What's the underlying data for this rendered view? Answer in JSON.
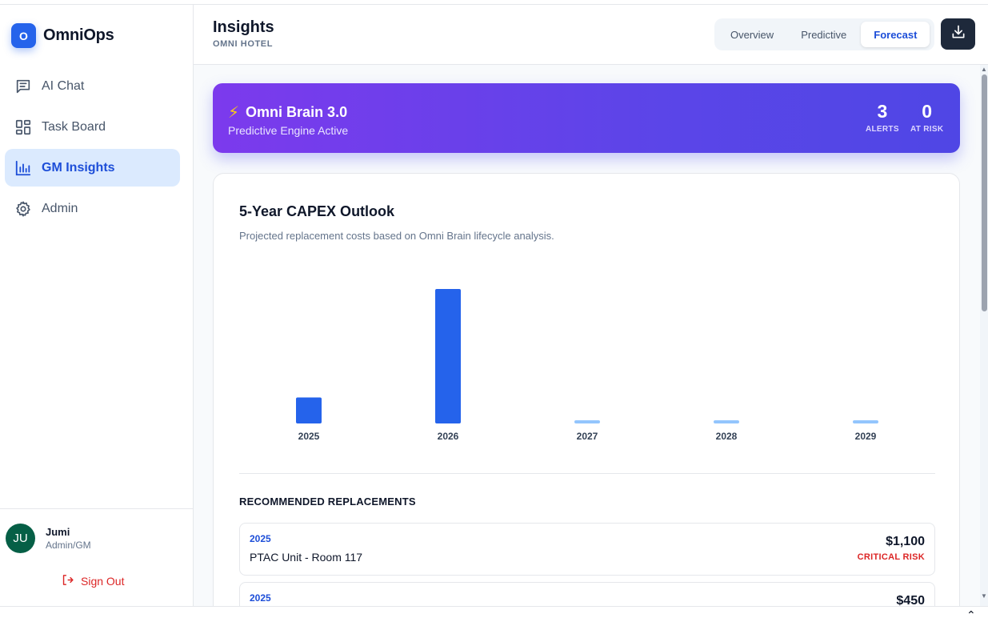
{
  "app": {
    "logo_letter": "O",
    "name": "OmniOps"
  },
  "sidebar": {
    "items": [
      {
        "label": "AI Chat",
        "icon": "chat-icon"
      },
      {
        "label": "Task Board",
        "icon": "grid-icon"
      },
      {
        "label": "GM Insights",
        "icon": "bar-chart-icon",
        "active": true
      },
      {
        "label": "Admin",
        "icon": "gear-icon"
      }
    ],
    "user": {
      "initials": "JU",
      "name": "Jumi",
      "role": "Admin/GM"
    },
    "signout_label": "Sign Out"
  },
  "header": {
    "title": "Insights",
    "subtitle": "OMNI HOTEL",
    "tabs": [
      "Overview",
      "Predictive",
      "Forecast"
    ],
    "active_tab": "Forecast"
  },
  "banner": {
    "title": "Omni Brain 3.0",
    "subtitle": "Predictive Engine Active",
    "stats": [
      {
        "value": "3",
        "label": "ALERTS"
      },
      {
        "value": "0",
        "label": "AT RISK"
      }
    ]
  },
  "card": {
    "title": "5-Year CAPEX Outlook",
    "subtitle": "Projected replacement costs based on Omni Brain lifecycle analysis."
  },
  "chart_data": {
    "type": "bar",
    "categories": [
      "2025",
      "2026",
      "2027",
      "2028",
      "2029"
    ],
    "values": [
      1550,
      8000,
      0,
      0,
      0
    ],
    "ylim": [
      0,
      8000
    ],
    "colors": {
      "filled": "#2563eb",
      "empty": "#93c5fd"
    },
    "grid": false
  },
  "recommended": {
    "title": "RECOMMENDED REPLACEMENTS",
    "items": [
      {
        "year": "2025",
        "name": "PTAC Unit - Room 117",
        "cost": "$1,100",
        "risk": "CRITICAL RISK"
      },
      {
        "year": "2025",
        "name": "",
        "cost": "$450",
        "risk": ""
      }
    ]
  },
  "colors": {
    "accent": "#2563eb",
    "danger": "#dc2626",
    "banner_start": "#7c3aed",
    "banner_end": "#4f46e5"
  }
}
